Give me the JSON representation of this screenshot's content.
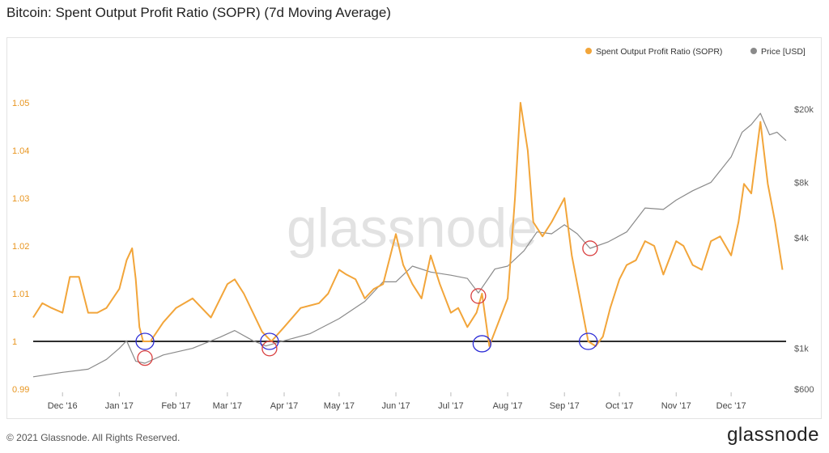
{
  "title": "Bitcoin: Spent Output Profit Ratio (SOPR) (7d Moving Average)",
  "footer": {
    "copyright": "© 2021 Glassnode. All Rights Reserved.",
    "logo": "glassnode"
  },
  "watermark": "glassnode",
  "chart_data": {
    "type": "line",
    "title": "Bitcoin: Spent Output Profit Ratio (SOPR) (7d Moving Average)",
    "x_ticks": [
      "Dec '16",
      "Jan '17",
      "Feb '17",
      "Mar '17",
      "Apr '17",
      "May '17",
      "Jun '17",
      "Jul '17",
      "Aug '17",
      "Sep '17",
      "Oct '17",
      "Nov '17",
      "Dec '17"
    ],
    "y_left": {
      "ticks": [
        "0.99",
        "1",
        "1.01",
        "1.02",
        "1.03",
        "1.04",
        "1.05"
      ],
      "range": [
        0.99,
        1.05
      ],
      "color": "#e8951f"
    },
    "y_right": {
      "scale": "log",
      "ticks": [
        "$600",
        "$1k",
        "$4k",
        "$8k",
        "$20k"
      ],
      "tick_values": [
        600,
        1000,
        4000,
        8000,
        20000
      ],
      "color": "#555555"
    },
    "legend": {
      "placement": "top-right",
      "items": [
        {
          "name": "Spent Output Profit Ratio (SOPR)",
          "color": "#f2a53a"
        },
        {
          "name": "Price [USD]",
          "color": "#8a8a8a"
        }
      ]
    },
    "reference_line": {
      "axis": "left",
      "value": 1.0,
      "color": "#111111"
    },
    "series": [
      {
        "name": "Spent Output Profit Ratio (SOPR)",
        "axis": "left",
        "color": "#f2a53a",
        "x": [
          "2016-11-15",
          "2016-11-20",
          "2016-11-25",
          "2016-12-01",
          "2016-12-05",
          "2016-12-10",
          "2016-12-15",
          "2016-12-20",
          "2016-12-25",
          "2017-01-01",
          "2017-01-05",
          "2017-01-08",
          "2017-01-10",
          "2017-01-12",
          "2017-01-14",
          "2017-01-18",
          "2017-01-25",
          "2017-02-01",
          "2017-02-10",
          "2017-02-15",
          "2017-02-20",
          "2017-03-01",
          "2017-03-05",
          "2017-03-10",
          "2017-03-15",
          "2017-03-20",
          "2017-03-25",
          "2017-04-01",
          "2017-04-10",
          "2017-04-20",
          "2017-04-25",
          "2017-05-01",
          "2017-05-05",
          "2017-05-10",
          "2017-05-15",
          "2017-05-20",
          "2017-05-25",
          "2017-06-01",
          "2017-06-05",
          "2017-06-10",
          "2017-06-15",
          "2017-06-20",
          "2017-06-25",
          "2017-07-01",
          "2017-07-05",
          "2017-07-10",
          "2017-07-15",
          "2017-07-18",
          "2017-07-22",
          "2017-07-25",
          "2017-07-28",
          "2017-08-01",
          "2017-08-05",
          "2017-08-08",
          "2017-08-12",
          "2017-08-15",
          "2017-08-20",
          "2017-08-25",
          "2017-09-01",
          "2017-09-05",
          "2017-09-10",
          "2017-09-14",
          "2017-09-18",
          "2017-09-22",
          "2017-09-26",
          "2017-10-01",
          "2017-10-05",
          "2017-10-10",
          "2017-10-15",
          "2017-10-20",
          "2017-10-25",
          "2017-11-01",
          "2017-11-05",
          "2017-11-10",
          "2017-11-15",
          "2017-11-20",
          "2017-11-25",
          "2017-12-01",
          "2017-12-05",
          "2017-12-08",
          "2017-12-12",
          "2017-12-17",
          "2017-12-21",
          "2017-12-25",
          "2017-12-29"
        ],
        "values": [
          1.005,
          1.008,
          1.007,
          1.006,
          1.0135,
          1.0135,
          1.006,
          1.006,
          1.007,
          1.011,
          1.017,
          1.0195,
          1.013,
          1.003,
          1.0,
          1.0,
          1.004,
          1.007,
          1.009,
          1.007,
          1.005,
          1.012,
          1.013,
          1.01,
          1.006,
          1.002,
          1.0,
          1.003,
          1.007,
          1.008,
          1.01,
          1.015,
          1.014,
          1.013,
          1.009,
          1.011,
          1.012,
          1.0225,
          1.016,
          1.012,
          1.009,
          1.018,
          1.012,
          1.006,
          1.007,
          1.003,
          1.006,
          1.01,
          0.999,
          1.002,
          1.005,
          1.009,
          1.03,
          1.05,
          1.04,
          1.025,
          1.022,
          1.025,
          1.03,
          1.018,
          1.008,
          1.0,
          0.999,
          1.001,
          1.007,
          1.013,
          1.016,
          1.017,
          1.021,
          1.02,
          1.014,
          1.021,
          1.02,
          1.016,
          1.015,
          1.021,
          1.022,
          1.018,
          1.025,
          1.033,
          1.031,
          1.046,
          1.033,
          1.025,
          1.015
        ]
      },
      {
        "name": "Price [USD]",
        "axis": "right",
        "color": "#8a8a8a",
        "x": [
          "2016-11-15",
          "2016-12-01",
          "2016-12-15",
          "2016-12-25",
          "2017-01-01",
          "2017-01-05",
          "2017-01-10",
          "2017-01-15",
          "2017-01-25",
          "2017-02-10",
          "2017-02-25",
          "2017-03-05",
          "2017-03-15",
          "2017-03-22",
          "2017-04-01",
          "2017-04-15",
          "2017-05-01",
          "2017-05-15",
          "2017-05-25",
          "2017-06-01",
          "2017-06-10",
          "2017-06-20",
          "2017-07-01",
          "2017-07-10",
          "2017-07-16",
          "2017-07-25",
          "2017-08-01",
          "2017-08-10",
          "2017-08-17",
          "2017-08-25",
          "2017-09-01",
          "2017-09-08",
          "2017-09-15",
          "2017-09-25",
          "2017-10-05",
          "2017-10-15",
          "2017-10-25",
          "2017-11-01",
          "2017-11-10",
          "2017-11-20",
          "2017-12-01",
          "2017-12-07",
          "2017-12-12",
          "2017-12-17",
          "2017-12-22",
          "2017-12-26",
          "2017-12-31"
        ],
        "values": [
          700,
          740,
          770,
          870,
          1000,
          1100,
          850,
          830,
          920,
          1000,
          1150,
          1250,
          1100,
          1030,
          1100,
          1200,
          1450,
          1800,
          2300,
          2300,
          2800,
          2600,
          2500,
          2400,
          2000,
          2700,
          2800,
          3400,
          4300,
          4200,
          4700,
          4200,
          3500,
          3800,
          4300,
          5800,
          5700,
          6400,
          7200,
          8000,
          11000,
          15000,
          16500,
          19000,
          14500,
          15000,
          13500
        ]
      }
    ],
    "annotations": [
      {
        "shape": "circle",
        "color": "#2b2bd6",
        "x": "2017-01-15",
        "y": 1.0
      },
      {
        "shape": "circle",
        "color": "#d94040",
        "x": "2017-01-15",
        "y": 0.9965
      },
      {
        "shape": "circle",
        "color": "#2b2bd6",
        "x": "2017-03-24",
        "y": 1.0
      },
      {
        "shape": "circle",
        "color": "#d94040",
        "x": "2017-03-24",
        "y": 0.9985
      },
      {
        "shape": "circle",
        "color": "#d94040",
        "x": "2017-07-16",
        "y": 1.0095
      },
      {
        "shape": "circle",
        "color": "#2b2bd6",
        "x": "2017-07-18",
        "y": 0.9995
      },
      {
        "shape": "circle",
        "color": "#d94040",
        "x": "2017-09-15",
        "y": 1.0195
      },
      {
        "shape": "circle",
        "color": "#2b2bd6",
        "x": "2017-09-14",
        "y": 1.0
      }
    ]
  }
}
